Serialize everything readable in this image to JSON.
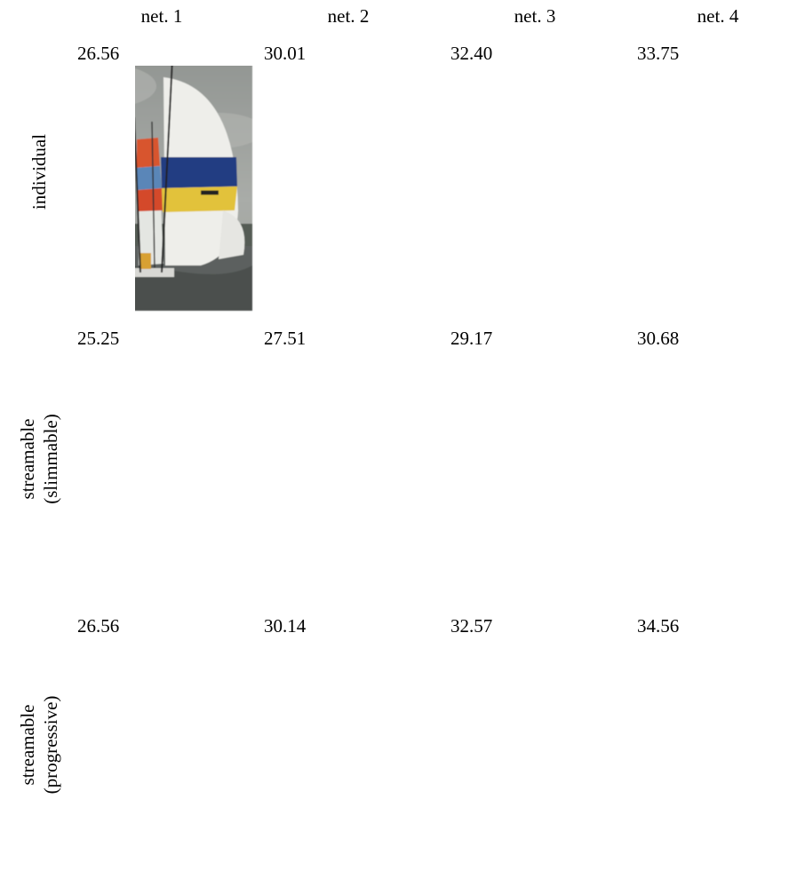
{
  "columns": [
    "net. 1",
    "net. 2",
    "net. 3",
    "net. 4"
  ],
  "rows": [
    {
      "label": [
        "individual"
      ],
      "cells": [
        "26.56",
        "30.01",
        "32.40",
        "33.75"
      ]
    },
    {
      "label": [
        "streamable",
        "(slimmable)"
      ],
      "cells": [
        "25.25",
        "27.51",
        "29.17",
        "30.68"
      ]
    },
    {
      "label": [
        "streamable",
        "(progressive)"
      ],
      "cells": [
        "26.56",
        "30.14",
        "32.57",
        "34.56"
      ]
    }
  ]
}
